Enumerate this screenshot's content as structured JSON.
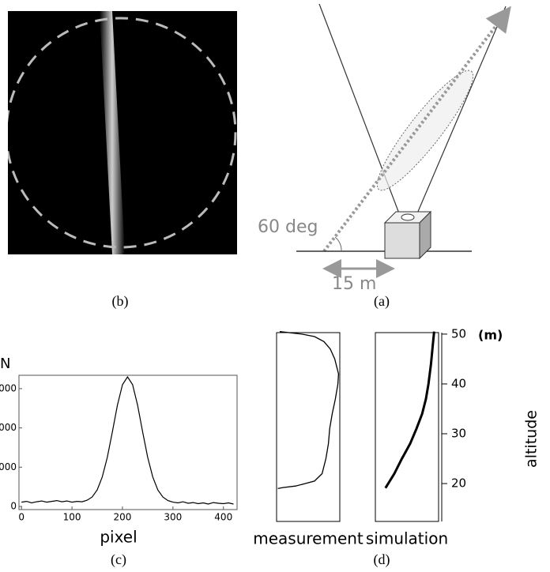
{
  "figure": {
    "a": {
      "caption": "(a)",
      "angle_label": "60 deg",
      "distance_label": "15 m"
    },
    "b": {
      "caption": "(b)"
    }
  },
  "chart_data": [
    {
      "type": "line",
      "caption": "(c)",
      "x_label": "pixel",
      "y_label": "N",
      "x": [
        0,
        10,
        20,
        30,
        40,
        50,
        60,
        70,
        80,
        90,
        100,
        110,
        120,
        130,
        140,
        150,
        160,
        170,
        180,
        190,
        200,
        210,
        220,
        230,
        240,
        250,
        260,
        270,
        280,
        290,
        300,
        310,
        320,
        330,
        340,
        350,
        360,
        370,
        380,
        390,
        400,
        410,
        420
      ],
      "values": [
        110,
        130,
        90,
        120,
        140,
        110,
        130,
        150,
        120,
        140,
        110,
        130,
        120,
        160,
        240,
        420,
        750,
        1250,
        1900,
        2580,
        3100,
        3300,
        3100,
        2580,
        1900,
        1250,
        750,
        420,
        240,
        150,
        110,
        90,
        120,
        80,
        100,
        70,
        90,
        60,
        100,
        80,
        70,
        90,
        60
      ],
      "color": "#000000",
      "xlim": [
        -5,
        427
      ],
      "ylim": [
        -80,
        3340
      ],
      "xticks": [
        0,
        100,
        200,
        300,
        400
      ],
      "yticks": [
        0,
        {
          "value": 1000,
          "label": "000"
        },
        {
          "value": 2000,
          "label": "000"
        },
        {
          "value": 3000,
          "label": "000"
        }
      ]
    },
    {
      "type": "profile",
      "x_label": "measurement",
      "x": [
        0.05,
        0.4,
        0.6,
        0.75,
        0.85,
        0.92,
        0.98,
        0.97,
        0.93,
        0.88,
        0.84,
        0.82,
        0.78,
        0.72,
        0.6,
        0.45,
        0.3,
        0.1,
        0.02
      ],
      "y": [
        50.5,
        50,
        49.5,
        48.5,
        47,
        45,
        42,
        40,
        37,
        34,
        31,
        28,
        25,
        22,
        20.5,
        20,
        19.5,
        19.2,
        19
      ],
      "color": "#000000",
      "xlim": [
        0,
        1
      ],
      "ylim": [
        12.4,
        50.3
      ]
    },
    {
      "type": "profile",
      "x_label": "simulation",
      "caption": "(d)",
      "y_label": "altitude",
      "y_unit": "(m)",
      "x": [
        0.16,
        0.3,
        0.42,
        0.55,
        0.65,
        0.74,
        0.8,
        0.84,
        0.88,
        0.91,
        0.93
      ],
      "y": [
        19.1,
        22,
        25,
        28,
        31,
        34,
        37,
        40,
        44,
        48,
        50.5
      ],
      "color": "#000000",
      "xlim": [
        0,
        1
      ],
      "ylim": [
        12.4,
        50.3
      ],
      "yticks": [
        20,
        30,
        40,
        50
      ]
    }
  ]
}
